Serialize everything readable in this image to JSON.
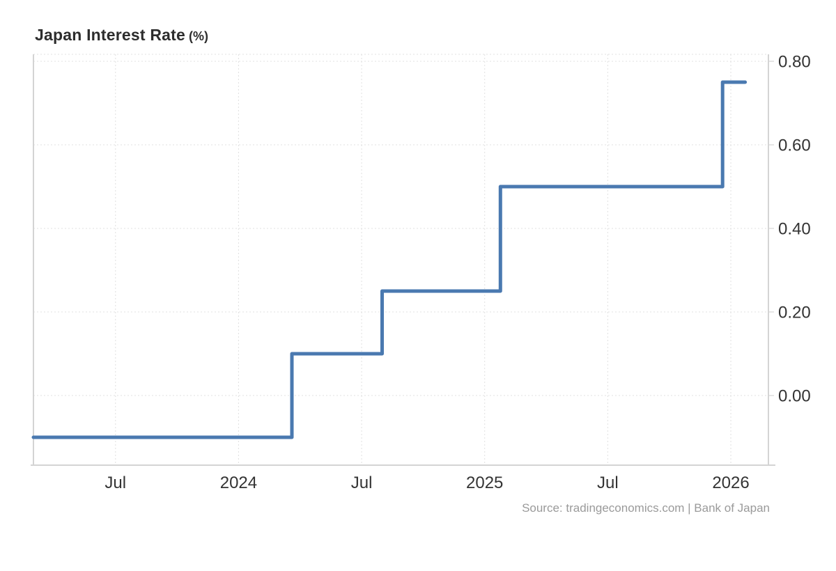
{
  "header": {
    "title": "Japan Interest Rate",
    "unit_suffix": "(%)"
  },
  "footer": {
    "source": "Source: tradingeconomics.com | Bank of Japan"
  },
  "chart_data": {
    "type": "line",
    "line_style": "step-after",
    "title": "Japan Interest Rate (%)",
    "ylabel": "%",
    "legend": false,
    "grid": "dotted",
    "series": [
      {
        "name": "Japan Interest Rate",
        "points": [
          {
            "date": "2023-03-01",
            "value": -0.1
          },
          {
            "date": "2024-03-19",
            "value": 0.1
          },
          {
            "date": "2024-08-01",
            "value": 0.25
          },
          {
            "date": "2025-01-24",
            "value": 0.5
          },
          {
            "date": "2025-12-19",
            "value": 0.75
          },
          {
            "date": "2026-01-22",
            "value": 0.75
          }
        ]
      }
    ],
    "x_axis": {
      "range": [
        "2023-03-01",
        "2026-02-26"
      ],
      "ticks": [
        {
          "date": "2023-07-01",
          "label": "Jul"
        },
        {
          "date": "2024-01-01",
          "label": "2024"
        },
        {
          "date": "2024-07-01",
          "label": "Jul"
        },
        {
          "date": "2025-01-01",
          "label": "2025"
        },
        {
          "date": "2025-07-01",
          "label": "Jul"
        },
        {
          "date": "2026-01-01",
          "label": "2026"
        }
      ]
    },
    "y_axis": {
      "position": "right",
      "range": [
        -0.1667,
        0.8167
      ],
      "tick_values": [
        0.8,
        0.6,
        0.4,
        0.2,
        0.0
      ],
      "tick_labels": [
        "0.80",
        "0.60",
        "0.40",
        "0.20",
        "0.00"
      ]
    },
    "colors": {
      "line": "#4a79b0",
      "grid": "#e0e0e0",
      "axis": "#d4d4d4",
      "tick": "#cccccc",
      "tick_text": "#333333",
      "title_text": "#2d2d2d",
      "source_text": "#9a9a9a"
    }
  }
}
